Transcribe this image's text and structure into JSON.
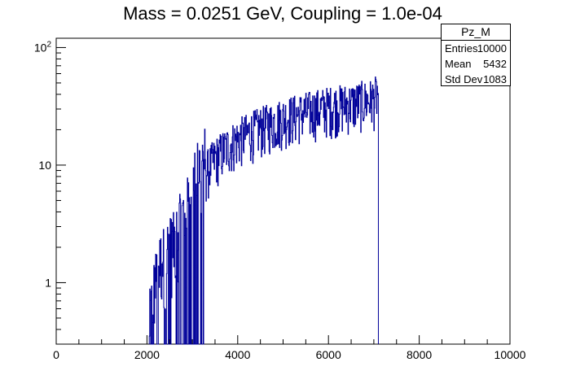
{
  "chart_data": {
    "type": "histogram",
    "title": "Mass = 0.0251 GeV, Coupling = 1.0e-04",
    "xlabel": "",
    "ylabel": "",
    "xlim": [
      0,
      10000
    ],
    "ylim": [
      0.3,
      120
    ],
    "yscale": "log",
    "grid": false,
    "color": "#000099",
    "x_ticks": [
      0,
      2000,
      4000,
      6000,
      8000,
      10000
    ],
    "x_tick_labels": [
      "0",
      "2000",
      "4000",
      "6000",
      "8000",
      "10000"
    ],
    "y_ticks": [
      1,
      10,
      100
    ],
    "y_tick_labels": [
      "1",
      "10",
      "10^2"
    ],
    "trend_envelope": {
      "x": [
        2050,
        2300,
        2600,
        2900,
        3200,
        3500,
        4000,
        4500,
        5000,
        5500,
        6000,
        6500,
        7000,
        7100
      ],
      "y": [
        0.3,
        1.0,
        1.5,
        3.0,
        7.0,
        11.0,
        16.0,
        20.0,
        24.0,
        27.0,
        30.0,
        32.0,
        35.0,
        40.0
      ]
    },
    "x_range_nonzero": [
      2050,
      7100
    ]
  },
  "stats": {
    "name": "Pz_M",
    "rows": [
      {
        "label": "Entries",
        "value": "10000"
      },
      {
        "label": "Mean",
        "value": "5432"
      },
      {
        "label": "Std Dev",
        "value": "1083"
      }
    ]
  }
}
